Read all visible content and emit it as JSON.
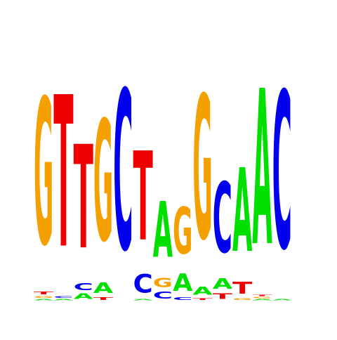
{
  "logo": {
    "alphabet_colors": {
      "A": "#00e000",
      "C": "#0000ee",
      "G": "#f4a000",
      "T": "#ee0000"
    },
    "columns": [
      {
        "stack": [
          {
            "base": "A",
            "h": 0.02
          },
          {
            "base": "G",
            "h": 0.03
          },
          {
            "base": "T",
            "h": 0.04
          },
          {
            "base": "G",
            "h": 2.2
          }
        ]
      },
      {
        "stack": [
          {
            "base": "A",
            "h": 0.02
          },
          {
            "base": "C",
            "h": 0.03
          },
          {
            "base": "T",
            "h": 2.28
          }
        ]
      },
      {
        "stack": [
          {
            "base": "A",
            "h": 0.08
          },
          {
            "base": "C",
            "h": 0.1
          },
          {
            "base": "T",
            "h": 1.56
          }
        ]
      },
      {
        "stack": [
          {
            "base": "T",
            "h": 0.04
          },
          {
            "base": "A",
            "h": 0.16
          },
          {
            "base": "G",
            "h": 1.82
          }
        ]
      },
      {
        "stack": [
          {
            "base": "C",
            "h": 2.4
          }
        ]
      },
      {
        "stack": [
          {
            "base": "A",
            "h": 0.02
          },
          {
            "base": "C",
            "h": 0.28
          },
          {
            "base": "T",
            "h": 1.34
          }
        ]
      },
      {
        "stack": [
          {
            "base": "C",
            "h": 0.1
          },
          {
            "base": "G",
            "h": 0.14
          },
          {
            "base": "A",
            "h": 0.84
          }
        ]
      },
      {
        "stack": [
          {
            "base": "C",
            "h": 0.04
          },
          {
            "base": "A",
            "h": 0.26
          },
          {
            "base": "G",
            "h": 0.7
          }
        ]
      },
      {
        "stack": [
          {
            "base": "T",
            "h": 0.03
          },
          {
            "base": "A",
            "h": 0.12
          },
          {
            "base": "G",
            "h": 2.16
          }
        ]
      },
      {
        "stack": [
          {
            "base": "T",
            "h": 0.08
          },
          {
            "base": "A",
            "h": 0.16
          },
          {
            "base": "C",
            "h": 1.06
          }
        ]
      },
      {
        "stack": [
          {
            "base": "G",
            "h": 0.03
          },
          {
            "base": "T",
            "h": 0.18
          },
          {
            "base": "A",
            "h": 1.26
          }
        ]
      },
      {
        "stack": [
          {
            "base": "A",
            "h": 0.02
          },
          {
            "base": "G",
            "h": 0.02
          },
          {
            "base": "T",
            "h": 0.02
          },
          {
            "base": "A",
            "h": 2.34
          }
        ]
      },
      {
        "stack": [
          {
            "base": "A",
            "h": 0.02
          },
          {
            "base": "C",
            "h": 2.36
          }
        ]
      }
    ],
    "y_max": 2.4
  }
}
